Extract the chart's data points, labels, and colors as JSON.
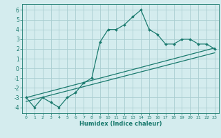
{
  "xlabel": "Humidex (Indice chaleur)",
  "bg_color": "#d4ecee",
  "grid_color": "#aacdd1",
  "line_color": "#1a7a6e",
  "xlim": [
    -0.5,
    23.5
  ],
  "ylim": [
    -4.6,
    6.6
  ],
  "xticks": [
    0,
    1,
    2,
    3,
    4,
    5,
    6,
    7,
    8,
    9,
    10,
    11,
    12,
    13,
    14,
    15,
    16,
    17,
    18,
    19,
    20,
    21,
    22,
    23
  ],
  "yticks": [
    -4,
    -3,
    -2,
    -1,
    0,
    1,
    2,
    3,
    4,
    5,
    6
  ],
  "main_x": [
    0,
    1,
    2,
    3,
    4,
    5,
    6,
    7,
    8,
    9,
    10,
    11,
    12,
    13,
    14,
    15,
    16,
    17,
    18,
    19,
    20,
    21,
    22,
    23
  ],
  "main_y": [
    -3,
    -4,
    -3,
    -3.5,
    -4,
    -3,
    -2.5,
    -1.5,
    -1,
    2.7,
    4,
    4,
    4.5,
    5.3,
    6,
    4,
    3.5,
    2.5,
    2.5,
    3,
    3,
    2.5,
    2.5,
    2
  ],
  "line2_x": [
    0,
    23
  ],
  "line2_y": [
    -3.0,
    2.1
  ],
  "line3_x": [
    0,
    23
  ],
  "line3_y": [
    -3.4,
    1.6
  ]
}
